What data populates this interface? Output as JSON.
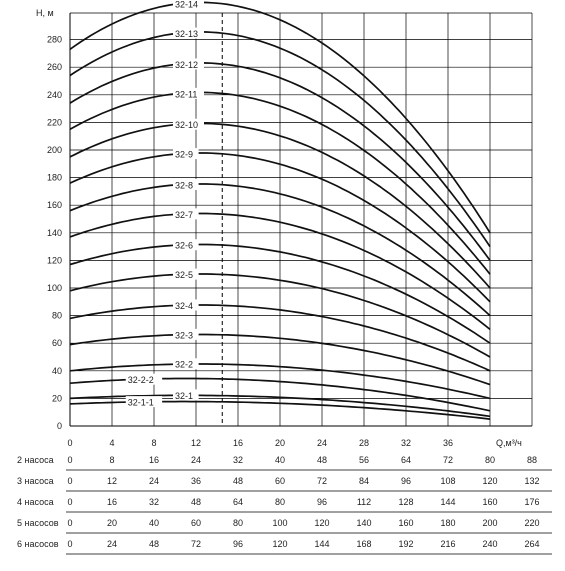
{
  "chart_data": {
    "type": "line",
    "ylabel": "H, м",
    "xlabel": "Q,м³/ч",
    "xlim": [
      0,
      40
    ],
    "ylim": [
      0,
      290
    ],
    "x_ticks": [
      0,
      4,
      8,
      12,
      16,
      20,
      24,
      28,
      32,
      36
    ],
    "x_tick_labels": [
      "0",
      "4",
      "8",
      "12",
      "16",
      "20",
      "24",
      "28",
      "32",
      "36"
    ],
    "y_ticks": [
      0,
      20,
      40,
      60,
      80,
      100,
      120,
      140,
      160,
      180,
      200,
      220,
      240,
      260,
      280
    ],
    "y_tick_labels": [
      "0",
      "20",
      "40",
      "60",
      "80",
      "100",
      "120",
      "140",
      "160",
      "180",
      "200",
      "220",
      "240",
      "260",
      "280"
    ],
    "grid": true,
    "reference_line_x": 14.5,
    "q_end": 40,
    "series": [
      {
        "name": "32-1-1",
        "h0": 16,
        "h_end": 5
      },
      {
        "name": "32-1",
        "h0": 20,
        "h_end": 7
      },
      {
        "name": "32-2-2",
        "h0": 31,
        "h_end": 11
      },
      {
        "name": "32-2",
        "h0": 40,
        "h_end": 20
      },
      {
        "name": "32-3",
        "h0": 59,
        "h_end": 30
      },
      {
        "name": "32-4",
        "h0": 78,
        "h_end": 40
      },
      {
        "name": "32-5",
        "h0": 98,
        "h_end": 50
      },
      {
        "name": "32-6",
        "h0": 117,
        "h_end": 60
      },
      {
        "name": "32-7",
        "h0": 137,
        "h_end": 70
      },
      {
        "name": "32-8",
        "h0": 156,
        "h_end": 80
      },
      {
        "name": "32-9",
        "h0": 176,
        "h_end": 90
      },
      {
        "name": "32-10",
        "h0": 195,
        "h_end": 100
      },
      {
        "name": "32-11",
        "h0": 215,
        "h_end": 110
      },
      {
        "name": "32-12",
        "h0": 234,
        "h_end": 120
      },
      {
        "name": "32-13",
        "h0": 254,
        "h_end": 130
      },
      {
        "name": "32-14",
        "h0": 273,
        "h_end": 140
      }
    ],
    "pump_rows": [
      {
        "label": "2 насоса",
        "values": [
          "0",
          "8",
          "16",
          "24",
          "32",
          "40",
          "48",
          "56",
          "64",
          "72",
          "80",
          "88"
        ]
      },
      {
        "label": "3 насоса",
        "values": [
          "0",
          "12",
          "24",
          "36",
          "48",
          "60",
          "72",
          "84",
          "96",
          "108",
          "120",
          "132"
        ]
      },
      {
        "label": "4 насоса",
        "values": [
          "0",
          "16",
          "32",
          "48",
          "64",
          "80",
          "96",
          "112",
          "128",
          "144",
          "160",
          "176"
        ]
      },
      {
        "label": "5 насосов",
        "values": [
          "0",
          "20",
          "40",
          "60",
          "80",
          "100",
          "120",
          "140",
          "160",
          "180",
          "200",
          "220"
        ]
      },
      {
        "label": "6 насосов",
        "values": [
          "0",
          "24",
          "48",
          "72",
          "96",
          "120",
          "144",
          "168",
          "192",
          "216",
          "240",
          "264"
        ]
      }
    ],
    "pump_row_x": [
      0,
      4,
      8,
      12,
      16,
      20,
      24,
      28,
      32,
      36,
      40,
      44
    ]
  }
}
